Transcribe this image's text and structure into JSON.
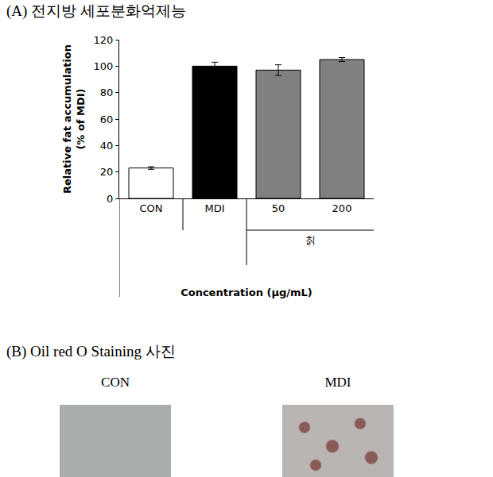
{
  "chart_data": {
    "type": "bar",
    "title": "(A) 전지방 세포분화억제능",
    "x_label": "Concentration (μg/mL)",
    "y_label": "Relative fat accumulation\n(% of MDI)",
    "categories": [
      "CON",
      "MDI",
      "50",
      "200"
    ],
    "values": [
      23,
      100,
      97,
      105
    ],
    "errors": [
      1,
      3,
      4,
      1.5
    ],
    "colors": [
      "#ffffff",
      "#000000",
      "#808080",
      "#808080"
    ],
    "annotations": [
      {
        "text": "칡",
        "categories": [
          "50",
          "200"
        ]
      }
    ],
    "ylim": [
      0,
      120
    ],
    "yticks": [
      0,
      20,
      40,
      60,
      80,
      100,
      120
    ],
    "grid": false
  },
  "panel_b": {
    "title": "(B) Oil red O Staining 사진",
    "images": [
      {
        "label": "CON"
      },
      {
        "label": "MDI"
      }
    ]
  }
}
